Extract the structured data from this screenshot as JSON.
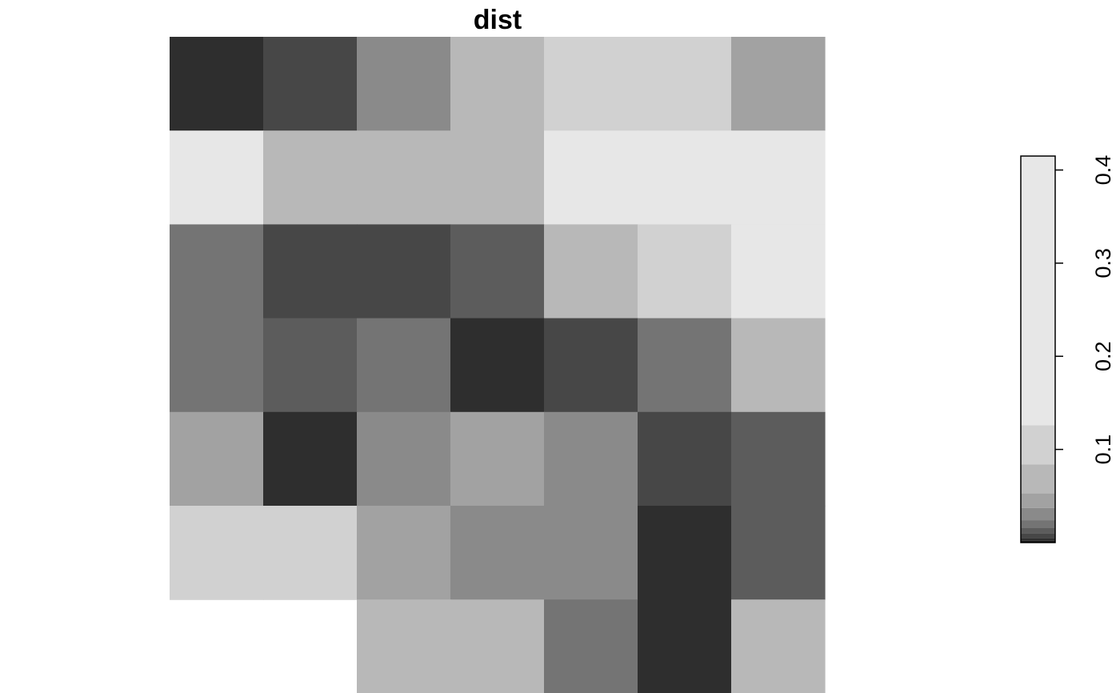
{
  "chart_data": {
    "type": "heatmap",
    "title": "dist",
    "rows": 7,
    "cols": 7,
    "grid": [
      [
        0.004,
        0.008,
        0.03,
        0.06,
        0.11,
        0.11,
        0.045
      ],
      [
        0.2,
        0.08,
        0.06,
        0.08,
        0.2,
        0.2,
        0.2
      ],
      [
        0.02,
        0.008,
        0.008,
        0.014,
        0.06,
        0.11,
        0.2
      ],
      [
        0.02,
        0.014,
        0.02,
        0.004,
        0.008,
        0.02,
        0.06
      ],
      [
        0.045,
        0.004,
        0.03,
        0.045,
        0.03,
        0.008,
        0.014
      ],
      [
        0.11,
        0.11,
        0.045,
        0.03,
        0.03,
        0.004,
        0.014
      ],
      [
        null,
        null,
        0.06,
        0.08,
        0.02,
        0.004,
        0.08
      ]
    ],
    "color_scale": "grayscale (dark = low, light = high)",
    "legend": {
      "placement": "right",
      "range": [
        0,
        0.415
      ],
      "ticks": [
        0.1,
        0.2,
        0.3,
        0.4
      ],
      "tick_labels": [
        "0.1",
        "0.2",
        "0.3",
        "0.4"
      ],
      "breaks": [
        0,
        0.002,
        0.005,
        0.01,
        0.016,
        0.024,
        0.037,
        0.053,
        0.084,
        0.126,
        0.415
      ],
      "colors": [
        "#191919",
        "#2e2e2e",
        "#474747",
        "#5c5c5c",
        "#747474",
        "#8a8a8a",
        "#a2a2a2",
        "#b8b8b8",
        "#d1d1d1",
        "#e7e7e7"
      ]
    }
  }
}
